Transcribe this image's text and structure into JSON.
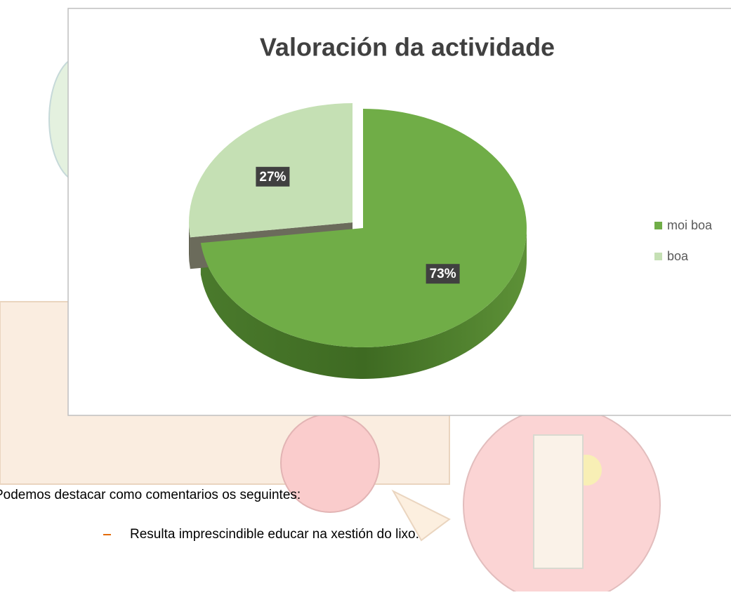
{
  "chart_data": {
    "type": "pie",
    "title": "Valoración da actividade",
    "categories": [
      "moi boa",
      "boa"
    ],
    "values": [
      73,
      27
    ],
    "value_labels": [
      "73%",
      "27%"
    ],
    "colors": [
      "#70ad47",
      "#c5e0b4"
    ],
    "legend": "right"
  },
  "text": {
    "intro": "Podemos destacar como comentarios os seguintes:",
    "bullets": [
      "Resulta imprescindible educar na xestión do lixo."
    ]
  }
}
